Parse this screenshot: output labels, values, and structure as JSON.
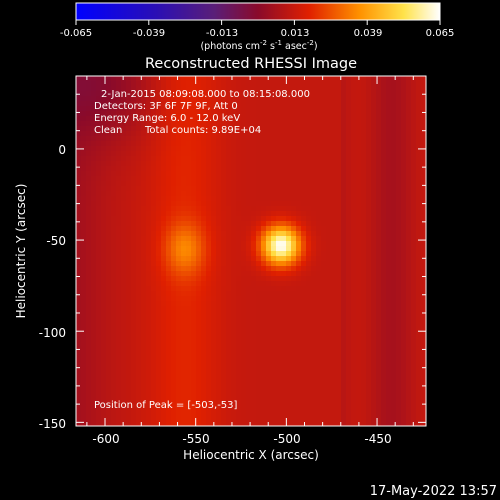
{
  "colorbar": {
    "ticks": [
      "-0.065",
      "-0.039",
      "-0.013",
      "0.013",
      "0.039",
      "0.065"
    ],
    "units_prefix": "(photons cm",
    "units_exp1": "-2",
    "units_mid1": " s",
    "units_exp2": "-1",
    "units_mid2": " asec",
    "units_exp3": "-2",
    "units_suffix": ")",
    "range": [
      -0.065,
      0.065
    ],
    "colormap": "RHESSI (black-blue-purple-red-yellow-white)"
  },
  "title": "Reconstructed RHESSI Image",
  "annotations": {
    "time_range": "2-Jan-2015 08:09:08.000 to 08:15:08.000",
    "detectors": "Detectors: 3F 6F 7F 9F, Att 0",
    "energy_range": "Energy Range: 6.0 - 12.0 keV",
    "method": "Clean",
    "total_counts": "Total counts: 9.89E+04",
    "peak_position": "Position of Peak = [-503,-53]"
  },
  "axes": {
    "xlabel": "Heliocentric X (arcsec)",
    "ylabel": "Heliocentric Y (arcsec)",
    "xticks": [
      "-600",
      "-550",
      "-500",
      "-450"
    ],
    "yticks": [
      "0",
      "-50",
      "-100",
      "-150"
    ]
  },
  "footer": {
    "timestamp": "17-May-2022 13:57"
  },
  "chart_data": {
    "type": "heatmap",
    "title": "Reconstructed RHESSI Image",
    "xlabel": "Heliocentric X (arcsec)",
    "ylabel": "Heliocentric Y (arcsec)",
    "xlim": [
      -616,
      -423
    ],
    "ylim": [
      -152,
      40
    ],
    "xticks": [
      -600,
      -550,
      -500,
      -450
    ],
    "yticks": [
      0,
      -50,
      -100,
      -150
    ],
    "value_range": [
      -0.065,
      0.065
    ],
    "peak": {
      "x": -503,
      "y": -53,
      "value": 0.065
    },
    "secondary_source": {
      "x": -556,
      "y": -55,
      "value": 0.028
    },
    "background_value": 0.012,
    "outer_band_value": 0.004
  }
}
